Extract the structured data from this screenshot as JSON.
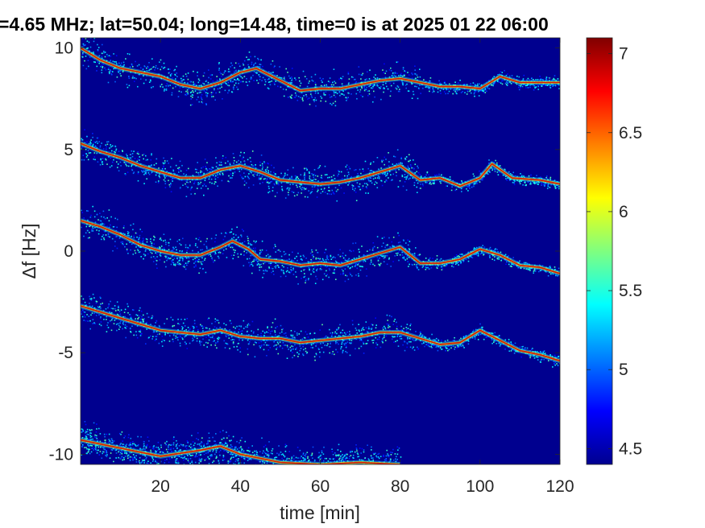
{
  "chart_data": {
    "type": "heatmap",
    "title": "=4.65 MHz;  lat=50.04; long=14.48, time=0 is at 2025 01 22 06:00",
    "xlabel": "time [min]",
    "ylabel": "Δf [Hz]",
    "xlim": [
      0,
      120
    ],
    "ylim": [
      -10.5,
      10.5
    ],
    "x_ticks": [
      20,
      40,
      60,
      80,
      100,
      120
    ],
    "x_tick_labels": [
      "20",
      "40",
      "60",
      "80",
      "100",
      "120"
    ],
    "y_ticks": [
      10,
      5,
      0,
      -5,
      -10
    ],
    "y_tick_labels": [
      "10",
      "5",
      "0",
      "-5",
      "-10"
    ],
    "background_color": "#00008F",
    "colorbar": {
      "colormap": "jet",
      "range": [
        4.4,
        7.1
      ],
      "ticks": [
        4.5,
        5,
        5.5,
        6,
        6.5,
        7
      ],
      "tick_labels": [
        "4.5",
        "5",
        "5.5",
        "6",
        "6.5",
        "7"
      ]
    },
    "traces": [
      {
        "name": "",
        "points": [
          [
            0,
            10.0
          ],
          [
            5,
            9.4
          ],
          [
            10,
            9.0
          ],
          [
            15,
            8.8
          ],
          [
            20,
            8.6
          ],
          [
            25,
            8.2
          ],
          [
            30,
            8.0
          ],
          [
            35,
            8.3
          ],
          [
            40,
            8.8
          ],
          [
            44,
            9.0
          ],
          [
            50,
            8.4
          ],
          [
            55,
            7.9
          ],
          [
            60,
            8.0
          ],
          [
            65,
            8.0
          ],
          [
            70,
            8.2
          ],
          [
            75,
            8.4
          ],
          [
            80,
            8.5
          ],
          [
            85,
            8.3
          ],
          [
            90,
            8.1
          ],
          [
            95,
            8.1
          ],
          [
            100,
            8.0
          ],
          [
            105,
            8.6
          ],
          [
            110,
            8.3
          ],
          [
            115,
            8.3
          ],
          [
            120,
            8.3
          ]
        ]
      },
      {
        "name": "",
        "points": [
          [
            0,
            5.3
          ],
          [
            5,
            4.9
          ],
          [
            10,
            4.6
          ],
          [
            15,
            4.2
          ],
          [
            20,
            3.9
          ],
          [
            25,
            3.6
          ],
          [
            30,
            3.6
          ],
          [
            35,
            4.0
          ],
          [
            40,
            4.2
          ],
          [
            45,
            3.9
          ],
          [
            50,
            3.5
          ],
          [
            55,
            3.4
          ],
          [
            60,
            3.3
          ],
          [
            65,
            3.4
          ],
          [
            70,
            3.6
          ],
          [
            75,
            3.9
          ],
          [
            80,
            4.2
          ],
          [
            85,
            3.5
          ],
          [
            90,
            3.6
          ],
          [
            95,
            3.2
          ],
          [
            100,
            3.6
          ],
          [
            103,
            4.3
          ],
          [
            108,
            3.6
          ],
          [
            115,
            3.5
          ],
          [
            120,
            3.3
          ]
        ]
      },
      {
        "name": "",
        "points": [
          [
            0,
            1.5
          ],
          [
            5,
            1.2
          ],
          [
            10,
            0.8
          ],
          [
            15,
            0.3
          ],
          [
            20,
            0.0
          ],
          [
            25,
            -0.2
          ],
          [
            30,
            -0.2
          ],
          [
            35,
            0.2
          ],
          [
            38,
            0.5
          ],
          [
            42,
            0.1
          ],
          [
            45,
            -0.4
          ],
          [
            50,
            -0.5
          ],
          [
            55,
            -0.7
          ],
          [
            60,
            -0.6
          ],
          [
            65,
            -0.7
          ],
          [
            70,
            -0.4
          ],
          [
            75,
            -0.1
          ],
          [
            80,
            0.2
          ],
          [
            85,
            -0.6
          ],
          [
            90,
            -0.6
          ],
          [
            95,
            -0.4
          ],
          [
            100,
            0.1
          ],
          [
            105,
            -0.2
          ],
          [
            110,
            -0.7
          ],
          [
            115,
            -0.8
          ],
          [
            120,
            -1.1
          ]
        ]
      },
      {
        "name": "",
        "points": [
          [
            0,
            -2.7
          ],
          [
            5,
            -3.0
          ],
          [
            10,
            -3.3
          ],
          [
            15,
            -3.6
          ],
          [
            20,
            -3.9
          ],
          [
            25,
            -4.0
          ],
          [
            30,
            -4.1
          ],
          [
            35,
            -3.9
          ],
          [
            40,
            -4.2
          ],
          [
            45,
            -4.3
          ],
          [
            50,
            -4.3
          ],
          [
            55,
            -4.5
          ],
          [
            60,
            -4.4
          ],
          [
            65,
            -4.3
          ],
          [
            70,
            -4.2
          ],
          [
            75,
            -4.0
          ],
          [
            80,
            -4.0
          ],
          [
            85,
            -4.3
          ],
          [
            90,
            -4.6
          ],
          [
            95,
            -4.5
          ],
          [
            100,
            -3.9
          ],
          [
            104,
            -4.3
          ],
          [
            110,
            -4.9
          ],
          [
            115,
            -5.1
          ],
          [
            120,
            -5.4
          ]
        ]
      },
      {
        "name": "",
        "points": [
          [
            0,
            -9.3
          ],
          [
            10,
            -9.7
          ],
          [
            20,
            -10.1
          ],
          [
            30,
            -9.8
          ],
          [
            35,
            -9.6
          ],
          [
            40,
            -10.0
          ],
          [
            50,
            -10.4
          ],
          [
            60,
            -10.5
          ],
          [
            70,
            -10.4
          ],
          [
            80,
            -10.5
          ]
        ]
      }
    ]
  }
}
